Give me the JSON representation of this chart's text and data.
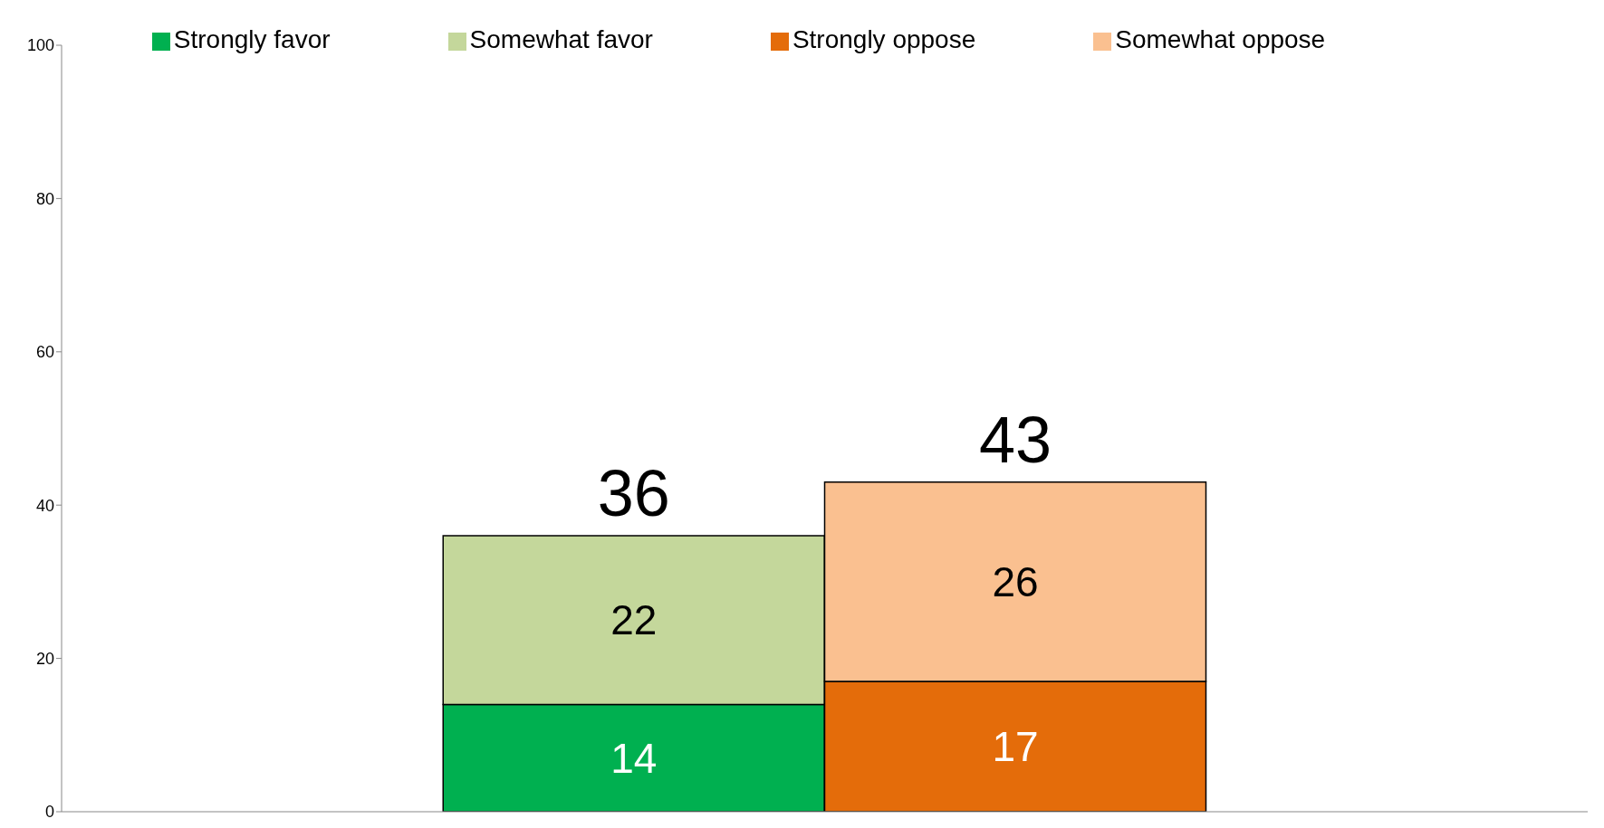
{
  "chart_data": {
    "type": "bar",
    "categories": [
      null,
      null,
      null,
      null
    ],
    "stacked": true,
    "series": [
      {
        "name": "Strongly favor",
        "color": "#00b050",
        "values": [
          null,
          14,
          null,
          null
        ]
      },
      {
        "name": "Somewhat favor",
        "color": "#c4d79b",
        "values": [
          null,
          22,
          null,
          null
        ]
      },
      {
        "name": "Strongly oppose",
        "color": "#e46c0a",
        "values": [
          null,
          null,
          17,
          null
        ]
      },
      {
        "name": "Somewhat oppose",
        "color": "#fac090",
        "values": [
          null,
          null,
          26,
          null
        ]
      }
    ],
    "ylim": [
      0,
      100
    ],
    "grid": false,
    "yticks": [
      0,
      20,
      40,
      60,
      80,
      100
    ],
    "legend": "top",
    "data_labels": true,
    "totals": [
      null,
      "36",
      "43",
      null
    ]
  }
}
